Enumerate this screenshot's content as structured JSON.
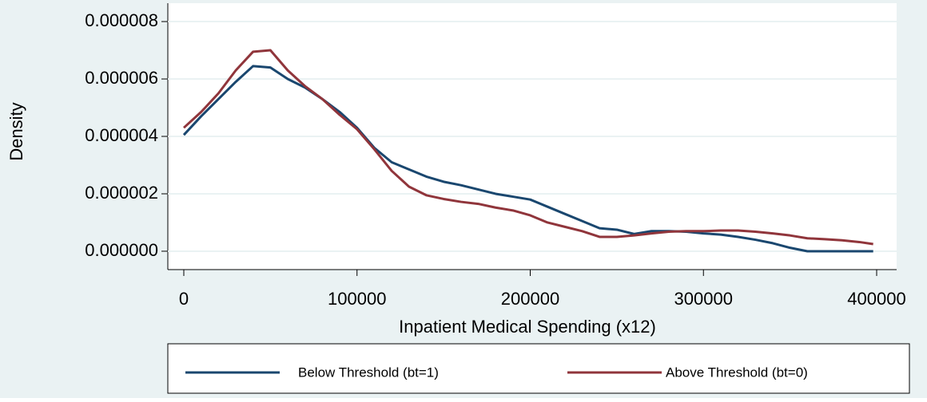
{
  "chart_data": {
    "type": "line",
    "x_label": "Inpatient Medical Spending (x12)",
    "y_label": "Density",
    "x": [
      0,
      10000,
      20000,
      30000,
      40000,
      50000,
      60000,
      70000,
      80000,
      90000,
      100000,
      110000,
      120000,
      130000,
      140000,
      150000,
      160000,
      170000,
      180000,
      190000,
      200000,
      210000,
      220000,
      230000,
      240000,
      250000,
      260000,
      270000,
      280000,
      290000,
      300000,
      310000,
      320000,
      330000,
      340000,
      350000,
      360000,
      370000,
      380000,
      390000,
      398000
    ],
    "series": [
      {
        "name": "Below Threshold (bt=1)",
        "color": "#1a476f",
        "values": [
          4.05e-06,
          4.7e-06,
          5.3e-06,
          5.9e-06,
          6.45e-06,
          6.4e-06,
          6e-06,
          5.7e-06,
          5.3e-06,
          4.85e-06,
          4.3e-06,
          3.6e-06,
          3.1e-06,
          2.85e-06,
          2.6e-06,
          2.42e-06,
          2.3e-06,
          2.15e-06,
          2e-06,
          1.9e-06,
          1.8e-06,
          1.55e-06,
          1.3e-06,
          1.05e-06,
          8e-07,
          7.5e-07,
          6e-07,
          7e-07,
          7e-07,
          6.8e-07,
          6.2e-07,
          5.8e-07,
          5e-07,
          4e-07,
          2.8e-07,
          1.2e-07,
          0,
          0,
          0,
          0,
          0
        ]
      },
      {
        "name": "Above Threshold (bt=0)",
        "color": "#90353b",
        "values": [
          4.3e-06,
          4.85e-06,
          5.5e-06,
          6.3e-06,
          6.95e-06,
          7e-06,
          6.3e-06,
          5.75e-06,
          5.3e-06,
          4.75e-06,
          4.25e-06,
          3.55e-06,
          2.8e-06,
          2.25e-06,
          1.95e-06,
          1.82e-06,
          1.72e-06,
          1.65e-06,
          1.52e-06,
          1.42e-06,
          1.25e-06,
          1e-06,
          8.5e-07,
          7e-07,
          5e-07,
          5e-07,
          5.5e-07,
          6.2e-07,
          6.8e-07,
          7e-07,
          7e-07,
          7.2e-07,
          7.2e-07,
          6.8e-07,
          6.2e-07,
          5.5e-07,
          4.5e-07,
          4.2e-07,
          3.8e-07,
          3.2e-07,
          2.5e-07
        ]
      }
    ],
    "xlim": [
      -9227,
      411534
    ],
    "ylim": [
      -6.4e-07,
      8.64e-06
    ],
    "xticks": [
      0,
      100000,
      200000,
      300000,
      400000
    ],
    "yticks": [
      {
        "value": 0,
        "label": "0.000000"
      },
      2e-06,
      4e-06,
      6e-06,
      8e-06
    ],
    "grid": true,
    "legend": "bottom"
  }
}
